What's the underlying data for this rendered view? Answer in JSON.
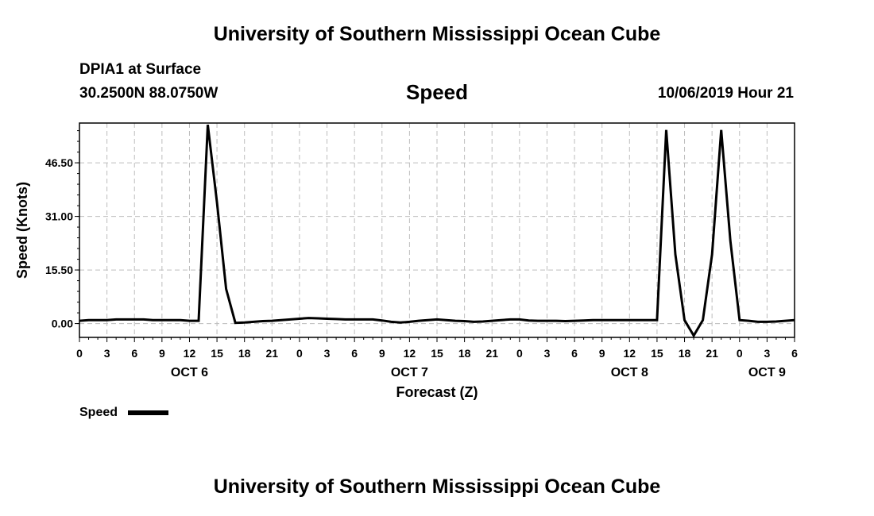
{
  "header": {
    "title": "University of Southern Mississippi Ocean Cube",
    "station": "DPIA1 at Surface",
    "location": "30.2500N 88.0750W",
    "timestamp": "10/06/2019 Hour 21"
  },
  "footer": {
    "title": "University of Southern Mississippi Ocean Cube"
  },
  "chart_data": {
    "type": "line",
    "title": "Speed",
    "xlabel": "Forecast (Z)",
    "ylabel": "Speed (Knots)",
    "ylim": [
      -4,
      58
    ],
    "xlim": [
      0,
      78
    ],
    "y_ticks": [
      0,
      15.5,
      31,
      46.5
    ],
    "y_tick_labels": [
      "0.00",
      "15.50",
      "31.00",
      "46.50"
    ],
    "x_ticks": [
      0,
      3,
      6,
      9,
      12,
      15,
      18,
      21,
      24,
      27,
      30,
      33,
      36,
      39,
      42,
      45,
      48,
      51,
      54,
      57,
      60,
      63,
      66,
      69,
      72,
      75,
      78
    ],
    "x_tick_labels": [
      "0",
      "3",
      "6",
      "9",
      "12",
      "15",
      "18",
      "21",
      "0",
      "3",
      "6",
      "9",
      "12",
      "15",
      "18",
      "21",
      "0",
      "3",
      "6",
      "9",
      "12",
      "15",
      "18",
      "21",
      "0",
      "3",
      "6"
    ],
    "day_labels": [
      {
        "text": "OCT 6",
        "x": 12
      },
      {
        "text": "OCT 7",
        "x": 36
      },
      {
        "text": "OCT 8",
        "x": 60
      },
      {
        "text": "OCT 9",
        "x": 75
      }
    ],
    "grid": true,
    "legend": {
      "position": "bottom-left",
      "entries": [
        "Speed"
      ]
    },
    "series": [
      {
        "name": "Speed",
        "color": "#000000",
        "x": [
          0,
          1,
          2,
          3,
          4,
          5,
          6,
          7,
          8,
          9,
          10,
          11,
          12,
          13,
          14,
          15,
          16,
          17,
          18,
          19,
          20,
          21,
          22,
          23,
          24,
          25,
          26,
          27,
          28,
          29,
          30,
          31,
          32,
          33,
          34,
          35,
          36,
          37,
          38,
          39,
          40,
          41,
          42,
          43,
          44,
          45,
          46,
          47,
          48,
          49,
          50,
          51,
          52,
          53,
          54,
          55,
          56,
          57,
          58,
          59,
          60,
          61,
          62,
          63,
          64,
          65,
          66,
          67,
          68,
          69,
          70,
          71,
          72,
          73,
          74,
          75,
          76,
          77,
          78
        ],
        "y": [
          0.8,
          1.0,
          1.0,
          1.0,
          1.2,
          1.2,
          1.2,
          1.2,
          1.0,
          1.0,
          1.0,
          1.0,
          0.8,
          0.8,
          57.5,
          35,
          10,
          0.2,
          0.3,
          0.5,
          0.7,
          0.8,
          1.0,
          1.2,
          1.4,
          1.6,
          1.5,
          1.4,
          1.3,
          1.2,
          1.2,
          1.2,
          1.2,
          0.9,
          0.5,
          0.3,
          0.5,
          0.8,
          1.0,
          1.2,
          1.0,
          0.8,
          0.7,
          0.5,
          0.6,
          0.8,
          1.0,
          1.2,
          1.2,
          0.9,
          0.8,
          0.8,
          0.8,
          0.7,
          0.8,
          0.9,
          1.0,
          1.0,
          1.0,
          1.0,
          1.0,
          1.0,
          1.0,
          1.0,
          56,
          20,
          1.0,
          -3.5,
          1.0,
          20,
          56,
          24,
          1.0,
          0.8,
          0.5,
          0.5,
          0.6,
          0.8,
          1.0
        ]
      }
    ]
  }
}
